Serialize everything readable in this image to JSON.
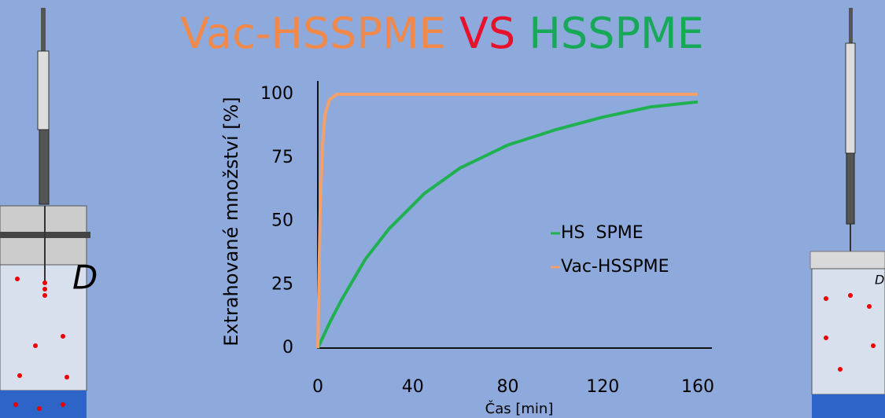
{
  "chart_data": {
    "type": "line",
    "title_parts": [
      {
        "text": "Vac-HSSPME",
        "color": "#f0894a"
      },
      {
        "text": "VS",
        "color": "#e8102a"
      },
      {
        "text": "HSSPME",
        "color": "#17a858"
      }
    ],
    "annotations": [
      "D",
      "D"
    ],
    "y_label": "Extrahované množství [%]",
    "x_label": "Čas [min]",
    "xlim": [
      0,
      160
    ],
    "xticks": [
      0,
      40,
      80,
      120,
      160
    ],
    "ylim": [
      0,
      100
    ],
    "yticks": [
      0,
      25,
      50,
      75,
      100
    ],
    "grid": false,
    "legend": "right",
    "series": [
      {
        "name": "HS  SPME",
        "color": "#1fb050",
        "x": [
          0,
          5,
          10,
          15,
          20,
          30,
          45,
          60,
          80,
          100,
          120,
          140,
          160
        ],
        "values": [
          0,
          10,
          19,
          27,
          35,
          47,
          61,
          71,
          80,
          86,
          91,
          95,
          97
        ]
      },
      {
        "name": "Vac-HSSPME",
        "color": "#f4a06a",
        "x": [
          0,
          1,
          2,
          3,
          5,
          8,
          160
        ],
        "values": [
          0,
          55,
          80,
          92,
          98,
          100,
          100
        ]
      }
    ]
  }
}
